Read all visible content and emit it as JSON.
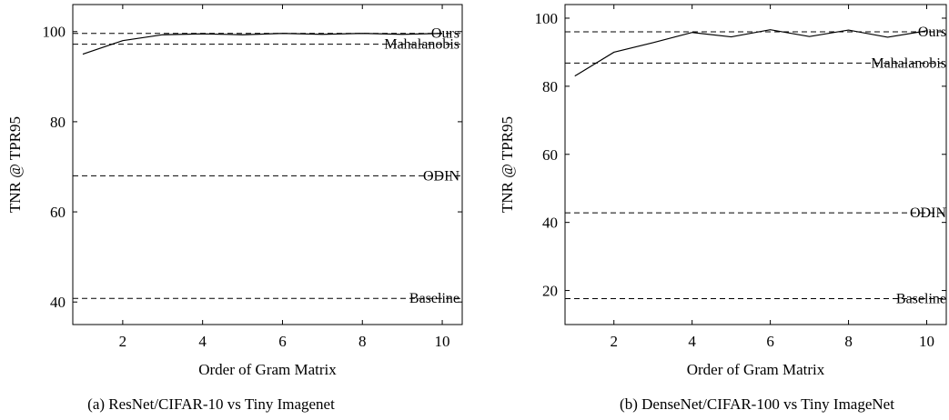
{
  "chart_data": [
    {
      "type": "line",
      "caption": "(a) ResNet/CIFAR-10 vs Tiny Imagenet",
      "xlabel": "Order of Gram Matrix",
      "ylabel": "TNR @ TPR95",
      "xlim": [
        0.75,
        10.5
      ],
      "ylim": [
        35,
        106
      ],
      "xticks": [
        2,
        4,
        6,
        8,
        10
      ],
      "yticks": [
        40,
        60,
        80,
        100
      ],
      "grid": false,
      "series": [
        {
          "x": [
            1,
            2,
            3,
            4,
            5,
            6,
            7,
            8,
            9,
            10
          ],
          "values": [
            95.0,
            98.0,
            99.3,
            99.5,
            99.3,
            99.6,
            99.4,
            99.6,
            99.4,
            99.6
          ]
        }
      ],
      "reference_lines": [
        {
          "name": "Ours",
          "value": 99.6
        },
        {
          "name": "Mahalanobis",
          "value": 97.2
        },
        {
          "name": "ODIN",
          "value": 68.0
        },
        {
          "name": "Baseline",
          "value": 40.8
        }
      ]
    },
    {
      "type": "line",
      "caption": "(b) DenseNet/CIFAR-100 vs Tiny ImageNet",
      "xlabel": "Order of Gram Matrix",
      "ylabel": "TNR @ TPR95",
      "xlim": [
        0.75,
        10.5
      ],
      "ylim": [
        10,
        104
      ],
      "xticks": [
        2,
        4,
        6,
        8,
        10
      ],
      "yticks": [
        20,
        40,
        60,
        80,
        100
      ],
      "grid": false,
      "series": [
        {
          "x": [
            1,
            2,
            3,
            4,
            5,
            6,
            7,
            8,
            9,
            10
          ],
          "values": [
            83.0,
            90.0,
            92.8,
            95.8,
            94.5,
            96.6,
            94.6,
            96.5,
            94.4,
            96.3
          ]
        }
      ],
      "reference_lines": [
        {
          "name": "Ours",
          "value": 96.0
        },
        {
          "name": "Mahalanobis",
          "value": 86.8
        },
        {
          "name": "ODIN",
          "value": 42.8
        },
        {
          "name": "Baseline",
          "value": 17.6
        }
      ]
    }
  ]
}
